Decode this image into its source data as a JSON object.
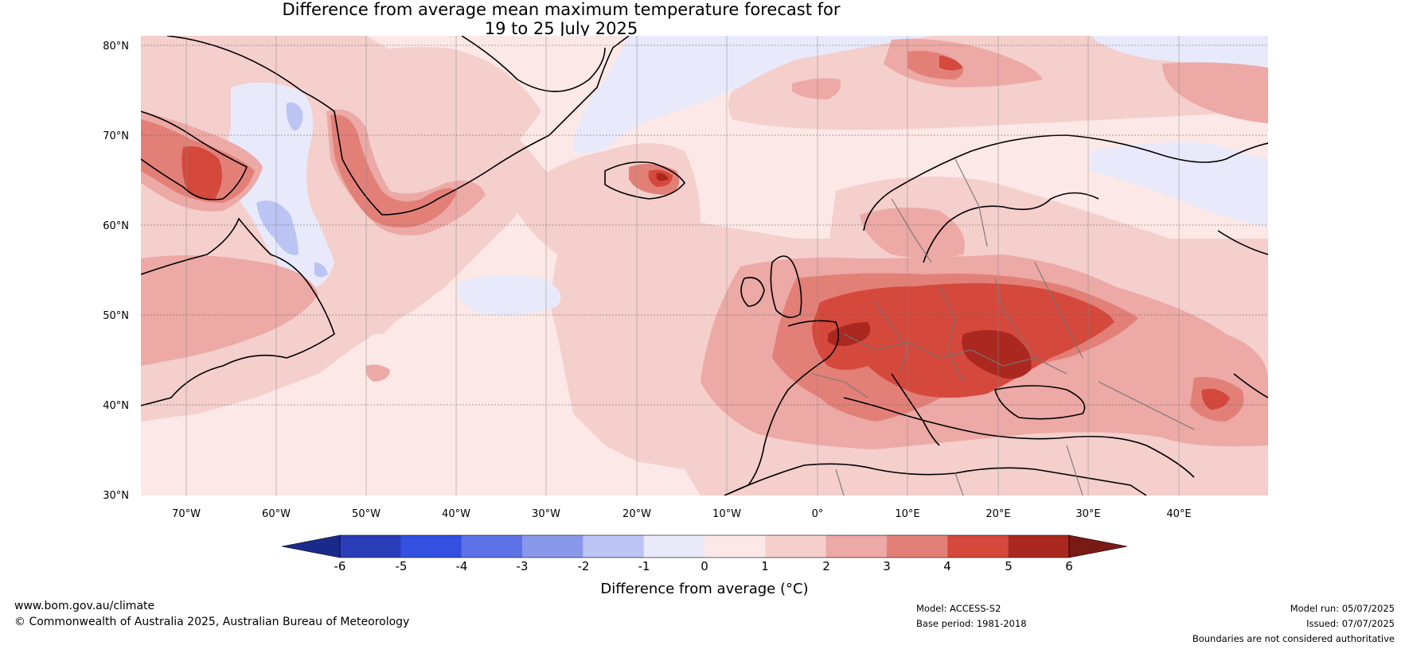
{
  "title_line1": "Difference from average mean maximum temperature forecast for",
  "title_line2": "19 to 25 July 2025",
  "latitude_labels": [
    "80°N",
    "70°N",
    "60°N",
    "50°N",
    "40°N",
    "30°N"
  ],
  "longitude_labels": [
    "70°W",
    "60°W",
    "50°W",
    "40°W",
    "30°W",
    "20°W",
    "10°W",
    "0°",
    "10°E",
    "20°E",
    "30°E",
    "40°E"
  ],
  "colorbar": {
    "ticks": [
      "-6",
      "-5",
      "-4",
      "-3",
      "-2",
      "-1",
      "0",
      "1",
      "2",
      "3",
      "4",
      "5",
      "6"
    ],
    "colors": [
      "#1a2a8c",
      "#2a3cb8",
      "#3350e0",
      "#5e72e8",
      "#8a98ec",
      "#bcc4f4",
      "#e8eafc",
      "#fce8e6",
      "#f4cfcc",
      "#eca9a5",
      "#e28078",
      "#d5483c",
      "#ab2820",
      "#7a1a14"
    ],
    "label": "Difference from average (°C)"
  },
  "footer": {
    "website": "www.bom.gov.au/climate",
    "copyright": "© Commonwealth of Australia 2025, Australian Bureau of Meteorology",
    "model": "Model: ACCESS-S2",
    "base_period": "Base period: 1981-2018",
    "model_run": "Model run: 05/07/2025",
    "issued": "Issued: 07/07/2025",
    "disclaimer": "Boundaries are not considered authoritative"
  }
}
